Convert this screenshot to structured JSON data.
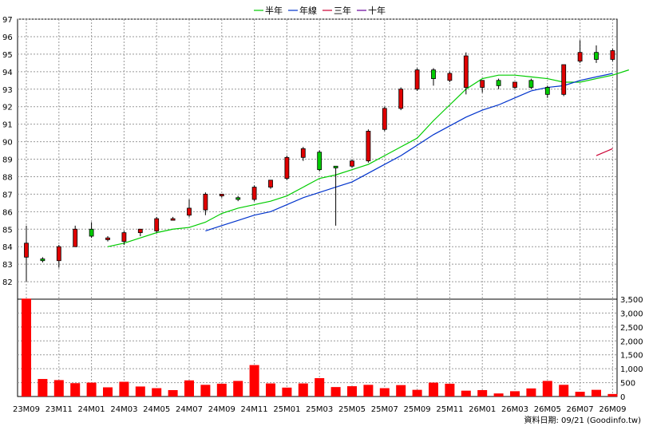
{
  "chart_data": {
    "type": "candlestick",
    "legend": [
      {
        "name": "半年",
        "color": "#00cc00"
      },
      {
        "name": "年線",
        "color": "#0033cc"
      },
      {
        "name": "三年",
        "color": "#cc0033"
      },
      {
        "name": "十年",
        "color": "#660099"
      }
    ],
    "footer": "資料日期: 09/21 (Goodinfo.tw)",
    "price_axis": {
      "ylim": [
        81,
        97
      ],
      "ticks": [
        82,
        83,
        84,
        85,
        86,
        87,
        88,
        89,
        90,
        91,
        92,
        93,
        94,
        95,
        96,
        97
      ]
    },
    "volume_axis": {
      "ylim": [
        0,
        3500
      ],
      "ticks": [
        "0",
        "500",
        "1,000",
        "1,500",
        "2,000",
        "2,500",
        "3,000",
        "3,500"
      ],
      "tick_values": [
        0,
        500,
        1000,
        1500,
        2000,
        2500,
        3000,
        3500
      ]
    },
    "x_labels": [
      {
        "index": 0,
        "label": "23M09"
      },
      {
        "index": 2,
        "label": "23M11"
      },
      {
        "index": 4,
        "label": "24M01"
      },
      {
        "index": 6,
        "label": "24M03"
      },
      {
        "index": 8,
        "label": "24M05"
      },
      {
        "index": 10,
        "label": "24M07"
      },
      {
        "index": 12,
        "label": "24M09"
      },
      {
        "index": 14,
        "label": "24M11"
      },
      {
        "index": 16,
        "label": "25M01"
      },
      {
        "index": 18,
        "label": "25M03"
      },
      {
        "index": 20,
        "label": "25M05"
      },
      {
        "index": 22,
        "label": "25M07"
      },
      {
        "index": 24,
        "label": "25M09"
      },
      {
        "index": 26,
        "label": "25M11"
      },
      {
        "index": 28,
        "label": "26M01"
      },
      {
        "index": 30,
        "label": "26M03"
      },
      {
        "index": 32,
        "label": "26M05"
      },
      {
        "index": 34,
        "label": "26M07"
      },
      {
        "index": 36,
        "label": "26M09"
      }
    ],
    "candles": [
      {
        "o": 83.4,
        "h": 85.2,
        "l": 82.0,
        "c": 84.2
      },
      {
        "o": 83.3,
        "h": 83.4,
        "l": 83.1,
        "c": 83.2
      },
      {
        "o": 83.2,
        "h": 84.1,
        "l": 82.8,
        "c": 84.0
      },
      {
        "o": 84.0,
        "h": 85.2,
        "l": 84.0,
        "c": 85.0
      },
      {
        "o": 85.0,
        "h": 85.4,
        "l": 84.5,
        "c": 84.6
      },
      {
        "o": 84.4,
        "h": 84.6,
        "l": 84.3,
        "c": 84.5
      },
      {
        "o": 84.3,
        "h": 84.9,
        "l": 84.1,
        "c": 84.8
      },
      {
        "o": 84.8,
        "h": 85.0,
        "l": 84.6,
        "c": 85.0
      },
      {
        "o": 84.9,
        "h": 85.7,
        "l": 84.8,
        "c": 85.6
      },
      {
        "o": 85.6,
        "h": 85.7,
        "l": 85.6,
        "c": 85.6
      },
      {
        "o": 85.8,
        "h": 86.7,
        "l": 85.7,
        "c": 86.2
      },
      {
        "o": 86.1,
        "h": 87.1,
        "l": 85.8,
        "c": 87.0
      },
      {
        "o": 86.9,
        "h": 87.0,
        "l": 86.8,
        "c": 87.0
      },
      {
        "o": 86.8,
        "h": 86.9,
        "l": 86.6,
        "c": 86.7
      },
      {
        "o": 86.7,
        "h": 87.5,
        "l": 86.6,
        "c": 87.4
      },
      {
        "o": 87.4,
        "h": 87.8,
        "l": 87.3,
        "c": 87.8
      },
      {
        "o": 87.9,
        "h": 89.2,
        "l": 87.8,
        "c": 89.1
      },
      {
        "o": 89.1,
        "h": 89.7,
        "l": 88.9,
        "c": 89.6
      },
      {
        "o": 89.4,
        "h": 89.5,
        "l": 88.3,
        "c": 88.4
      },
      {
        "o": 88.6,
        "h": 88.6,
        "l": 85.2,
        "c": 88.5
      },
      {
        "o": 88.6,
        "h": 89.0,
        "l": 88.5,
        "c": 88.9
      },
      {
        "o": 88.9,
        "h": 90.7,
        "l": 88.8,
        "c": 90.6
      },
      {
        "o": 90.7,
        "h": 92.0,
        "l": 90.6,
        "c": 91.9
      },
      {
        "o": 91.9,
        "h": 93.1,
        "l": 91.8,
        "c": 93.0
      },
      {
        "o": 93.0,
        "h": 94.2,
        "l": 92.9,
        "c": 94.1
      },
      {
        "o": 94.1,
        "h": 94.2,
        "l": 93.2,
        "c": 93.6
      },
      {
        "o": 93.5,
        "h": 94.0,
        "l": 93.4,
        "c": 93.9
      },
      {
        "o": 93.1,
        "h": 95.1,
        "l": 92.7,
        "c": 94.9
      },
      {
        "o": 93.1,
        "h": 93.5,
        "l": 92.8,
        "c": 93.5
      },
      {
        "o": 93.5,
        "h": 93.6,
        "l": 93.0,
        "c": 93.2
      },
      {
        "o": 93.1,
        "h": 93.4,
        "l": 93.0,
        "c": 93.4
      },
      {
        "o": 93.5,
        "h": 93.6,
        "l": 93.0,
        "c": 93.1
      },
      {
        "o": 93.1,
        "h": 93.2,
        "l": 92.5,
        "c": 92.7
      },
      {
        "o": 92.7,
        "h": 94.4,
        "l": 92.6,
        "c": 94.4
      },
      {
        "o": 94.6,
        "h": 95.8,
        "l": 94.5,
        "c": 95.1
      },
      {
        "o": 95.1,
        "h": 95.5,
        "l": 94.5,
        "c": 94.7
      },
      {
        "o": 94.7,
        "h": 95.3,
        "l": 94.6,
        "c": 95.2
      }
    ],
    "volumes": [
      3520,
      630,
      590,
      480,
      500,
      330,
      530,
      360,
      300,
      230,
      580,
      420,
      460,
      560,
      1130,
      470,
      320,
      470,
      660,
      340,
      370,
      420,
      300,
      410,
      240,
      500,
      460,
      210,
      230,
      110,
      190,
      290,
      560,
      420,
      170,
      240,
      90
    ],
    "series": [
      {
        "name": "半年",
        "color": "#00cc00",
        "start": 5,
        "values": [
          84.0,
          84.2,
          84.5,
          84.8,
          85.0,
          85.1,
          85.4,
          85.9,
          86.2,
          86.4,
          86.6,
          86.9,
          87.4,
          87.9,
          88.1,
          88.4,
          88.7,
          89.2,
          89.7,
          90.2,
          91.2,
          92.1,
          93.0,
          93.6,
          93.8,
          93.8,
          93.7,
          93.6,
          93.4,
          93.4,
          93.6,
          93.8,
          94.1
        ]
      },
      {
        "name": "年線",
        "color": "#0033cc",
        "start": 11,
        "values": [
          84.9,
          85.2,
          85.5,
          85.8,
          86.0,
          86.4,
          86.8,
          87.1,
          87.4,
          87.7,
          88.2,
          88.7,
          89.2,
          89.8,
          90.4,
          90.9,
          91.4,
          91.8,
          92.1,
          92.5,
          92.9,
          93.1,
          93.2,
          93.5,
          93.7,
          93.9
        ]
      },
      {
        "name": "三年",
        "color": "#cc0033",
        "start": 35,
        "values": [
          89.2,
          89.6
        ]
      },
      {
        "name": "十年",
        "color": "#660099",
        "start": 0,
        "values": []
      }
    ]
  }
}
